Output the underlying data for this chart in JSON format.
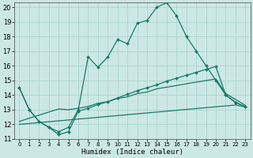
{
  "title": "",
  "xlabel": "Humidex (Indice chaleur)",
  "xlim": [
    -0.5,
    23.5
  ],
  "ylim": [
    11,
    20.3
  ],
  "yticks": [
    11,
    12,
    13,
    14,
    15,
    16,
    17,
    18,
    19,
    20
  ],
  "xticks": [
    0,
    1,
    2,
    3,
    4,
    5,
    6,
    7,
    8,
    9,
    10,
    11,
    12,
    13,
    14,
    15,
    16,
    17,
    18,
    19,
    20,
    21,
    22,
    23
  ],
  "background_color": "#cce8e4",
  "grid_color": "#aad4ce",
  "line_color": "#1a7a6a",
  "line1_x": [
    0,
    1,
    2,
    3,
    4,
    5,
    6,
    7,
    8,
    9,
    10,
    11,
    12,
    13,
    14,
    15,
    16,
    17,
    18,
    19,
    20,
    21,
    22,
    23
  ],
  "line1_y": [
    14.5,
    13.0,
    12.2,
    11.8,
    11.5,
    11.8,
    13.0,
    16.6,
    15.9,
    16.6,
    17.8,
    17.5,
    18.9,
    19.1,
    20.0,
    20.3,
    19.4,
    18.0,
    17.0,
    16.0,
    15.0,
    14.0,
    13.5,
    13.2
  ],
  "line2_x": [
    0,
    1,
    2,
    3,
    4,
    5,
    6,
    7,
    8,
    9,
    10,
    11,
    12,
    13,
    14,
    15,
    16,
    17,
    18,
    19,
    20,
    21,
    22,
    23
  ],
  "line2_y": [
    14.5,
    13.0,
    12.2,
    11.8,
    11.3,
    11.5,
    12.9,
    13.1,
    13.35,
    13.55,
    13.8,
    14.05,
    14.3,
    14.5,
    14.7,
    14.95,
    15.15,
    15.35,
    15.55,
    15.75,
    15.95,
    14.0,
    13.5,
    13.2
  ],
  "line3_x": [
    0,
    1,
    2,
    3,
    4,
    5,
    6,
    7,
    8,
    9,
    10,
    11,
    12,
    13,
    14,
    15,
    16,
    17,
    18,
    19,
    20,
    21,
    22,
    23
  ],
  "line3_y": [
    12.0,
    12.06,
    12.12,
    12.18,
    12.24,
    12.3,
    12.36,
    12.42,
    12.48,
    12.54,
    12.6,
    12.66,
    12.72,
    12.78,
    12.84,
    12.9,
    12.96,
    13.02,
    13.08,
    13.14,
    13.2,
    13.26,
    13.32,
    13.2
  ],
  "line4_x": [
    0,
    1,
    2,
    3,
    4,
    5,
    6,
    7,
    8,
    9,
    10,
    11,
    12,
    13,
    14,
    15,
    16,
    17,
    18,
    19,
    20,
    21,
    22,
    23
  ],
  "line4_y": [
    12.2,
    12.42,
    12.63,
    12.84,
    13.05,
    13.0,
    13.1,
    13.22,
    13.44,
    13.55,
    13.77,
    13.88,
    14.1,
    14.21,
    14.43,
    14.54,
    14.65,
    14.77,
    14.88,
    14.99,
    15.1,
    14.1,
    13.7,
    13.3
  ]
}
